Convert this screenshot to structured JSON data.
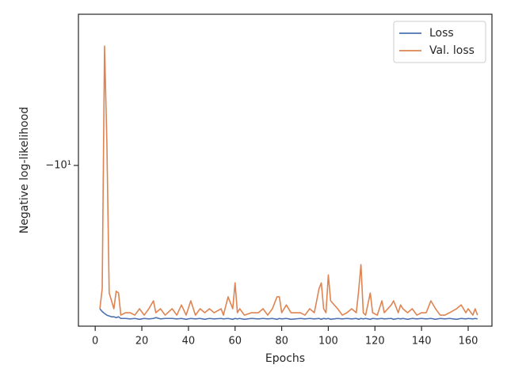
{
  "chart_data": {
    "type": "line",
    "xlabel": "Epochs",
    "ylabel": "Negative log-likelihood",
    "yscale": "symlog",
    "grid": false,
    "legend": "upper right",
    "xlim": [
      -7.2,
      170.2
    ],
    "xticks": [
      0,
      20,
      40,
      60,
      80,
      100,
      120,
      140,
      160
    ],
    "ylim": [
      -3.2,
      -29.2
    ],
    "yticks": [
      {
        "value": -10,
        "label": "−10¹"
      }
    ],
    "x": [
      2,
      3,
      4,
      5,
      6,
      7,
      8,
      9,
      10,
      11,
      13,
      15,
      17,
      19,
      21,
      23,
      25,
      26,
      28,
      30,
      33,
      35,
      37,
      39,
      41,
      43,
      45,
      47,
      49,
      51,
      54,
      55,
      57,
      59,
      60,
      61,
      62,
      64,
      67,
      70,
      72,
      74,
      76,
      78,
      79,
      80,
      82,
      84,
      88,
      90,
      92,
      94,
      96,
      97,
      98,
      99,
      100,
      101,
      104,
      106,
      108,
      110,
      112,
      113,
      114,
      115,
      116,
      118,
      119,
      121,
      123,
      124,
      127,
      128,
      130,
      131,
      132,
      134,
      136,
      138,
      140,
      142,
      144,
      146,
      148,
      150,
      152,
      155,
      157,
      159,
      160,
      162,
      163,
      164
    ],
    "series": [
      {
        "name": "Loss",
        "color": "#4c72b0",
        "values": [
          -3.62,
          -3.55,
          -3.5,
          -3.46,
          -3.44,
          -3.42,
          -3.42,
          -3.4,
          -3.42,
          -3.38,
          -3.38,
          -3.37,
          -3.38,
          -3.36,
          -3.38,
          -3.37,
          -3.38,
          -3.4,
          -3.37,
          -3.38,
          -3.38,
          -3.37,
          -3.38,
          -3.36,
          -3.38,
          -3.37,
          -3.38,
          -3.36,
          -3.38,
          -3.37,
          -3.38,
          -3.37,
          -3.38,
          -3.36,
          -3.38,
          -3.37,
          -3.38,
          -3.36,
          -3.38,
          -3.37,
          -3.38,
          -3.37,
          -3.38,
          -3.36,
          -3.38,
          -3.37,
          -3.38,
          -3.36,
          -3.38,
          -3.37,
          -3.38,
          -3.37,
          -3.38,
          -3.36,
          -3.38,
          -3.37,
          -3.38,
          -3.36,
          -3.38,
          -3.37,
          -3.38,
          -3.37,
          -3.38,
          -3.36,
          -3.38,
          -3.37,
          -3.38,
          -3.36,
          -3.38,
          -3.37,
          -3.38,
          -3.37,
          -3.38,
          -3.36,
          -3.38,
          -3.37,
          -3.38,
          -3.36,
          -3.38,
          -3.37,
          -3.38,
          -3.37,
          -3.38,
          -3.36,
          -3.38,
          -3.37,
          -3.38,
          -3.36,
          -3.38,
          -3.37,
          -3.38,
          -3.37,
          -3.38,
          -3.37
        ]
      },
      {
        "name": "Val. loss",
        "color": "#dd8452",
        "values": [
          -3.62,
          -4.17,
          -23.3,
          -11.8,
          -4.05,
          -3.83,
          -3.62,
          -4.1,
          -4.05,
          -3.46,
          -3.52,
          -3.52,
          -3.46,
          -3.62,
          -3.46,
          -3.62,
          -3.83,
          -3.52,
          -3.62,
          -3.46,
          -3.62,
          -3.46,
          -3.72,
          -3.46,
          -3.83,
          -3.46,
          -3.62,
          -3.52,
          -3.62,
          -3.52,
          -3.62,
          -3.46,
          -3.94,
          -3.62,
          -4.35,
          -3.52,
          -3.62,
          -3.46,
          -3.52,
          -3.52,
          -3.62,
          -3.46,
          -3.62,
          -3.94,
          -3.94,
          -3.52,
          -3.72,
          -3.52,
          -3.52,
          -3.46,
          -3.62,
          -3.52,
          -4.17,
          -4.35,
          -3.62,
          -3.52,
          -4.6,
          -3.83,
          -3.62,
          -3.46,
          -3.52,
          -3.62,
          -3.52,
          -4.1,
          -4.95,
          -3.52,
          -3.46,
          -4.05,
          -3.52,
          -3.46,
          -3.83,
          -3.52,
          -3.72,
          -3.83,
          -3.52,
          -3.72,
          -3.62,
          -3.52,
          -3.62,
          -3.46,
          -3.52,
          -3.52,
          -3.83,
          -3.62,
          -3.46,
          -3.46,
          -3.52,
          -3.62,
          -3.72,
          -3.52,
          -3.62,
          -3.46,
          -3.62,
          -3.46
        ]
      }
    ]
  }
}
